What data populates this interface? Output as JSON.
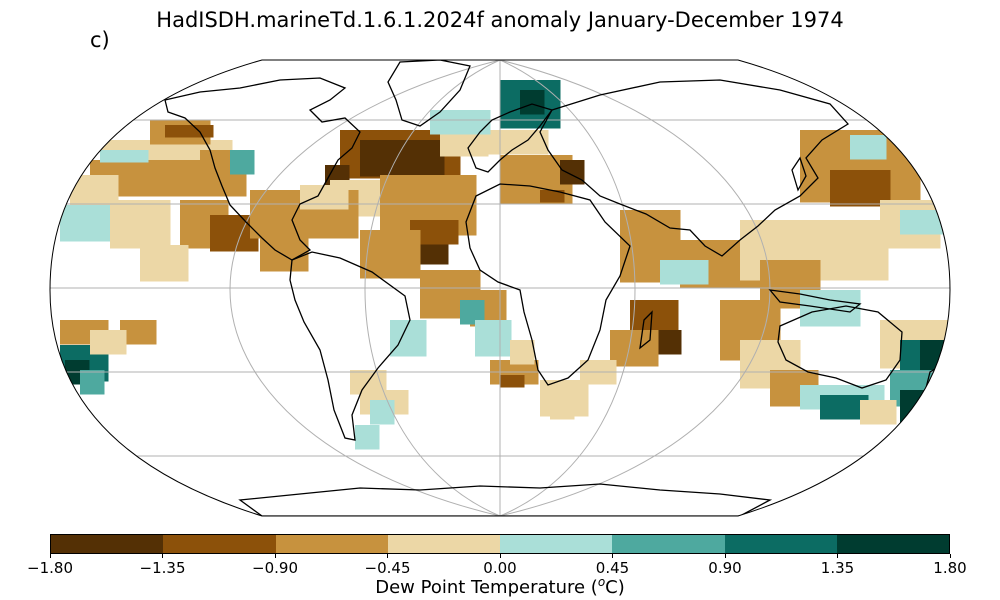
{
  "figure": {
    "title": "HadISDH.marineTd.1.6.1.2024f anomaly January-December 1974",
    "panel_label": "c)"
  },
  "colorbar": {
    "label_prefix": "Dew Point Temperature (",
    "label_super": "o",
    "label_suffix": "C)",
    "ticks": [
      "−1.80",
      "−1.35",
      "−0.90",
      "−0.45",
      "0.00",
      "0.45",
      "0.90",
      "1.35",
      "1.80"
    ],
    "colors": [
      "#543005",
      "#8c510a",
      "#c7923e",
      "#ecd7a6",
      "#aadfd8",
      "#4ea99f",
      "#0c6c63",
      "#003c30"
    ]
  },
  "map": {
    "projection": "Robinson",
    "coastline_color": "#000000",
    "gridline_color": "#b0b0b0",
    "missing_color": "#ffffff"
  }
}
